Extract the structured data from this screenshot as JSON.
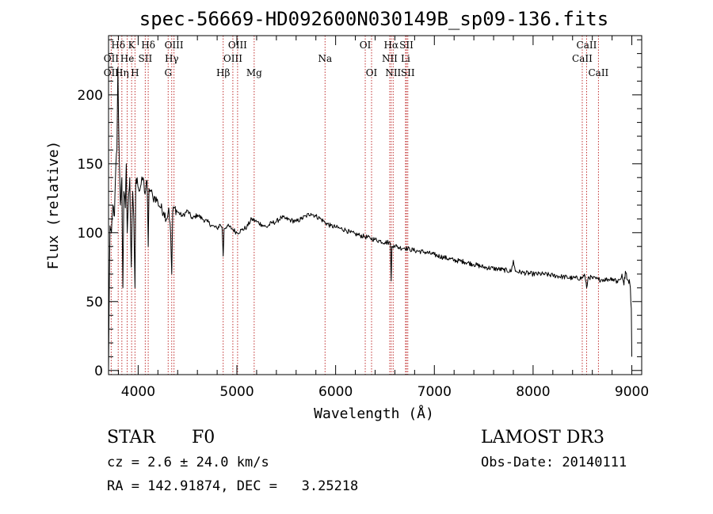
{
  "chart_data": {
    "type": "line",
    "title": "spec-56669-HD092600N030149B_sp09-136.fits",
    "xlabel": "Wavelength (Å)",
    "ylabel": "Flux (relative)",
    "xlim": [
      3700,
      9100
    ],
    "ylim": [
      -3,
      243
    ],
    "xticks": [
      4000,
      5000,
      6000,
      7000,
      8000,
      9000
    ],
    "xtick_labels": [
      "4000",
      "5000",
      "6000",
      "7000",
      "8000",
      "9000"
    ],
    "yticks": [
      0,
      50,
      100,
      150,
      200
    ],
    "ytick_labels": [
      "0",
      "50",
      "100",
      "150",
      "200"
    ],
    "grid": false,
    "series": [
      {
        "name": "spectrum",
        "x": [
          3700,
          3705,
          3715,
          3730,
          3745,
          3760,
          3775,
          3785,
          3795,
          3800,
          3810,
          3820,
          3835,
          3845,
          3855,
          3870,
          3880,
          3889,
          3900,
          3915,
          3930,
          3945,
          3955,
          3968,
          3975,
          3990,
          4010,
          4030,
          4050,
          4070,
          4090,
          4102,
          4110,
          4130,
          4150,
          4170,
          4200,
          4230,
          4260,
          4290,
          4310,
          4330,
          4340,
          4350,
          4370,
          4400,
          4450,
          4500,
          4550,
          4600,
          4650,
          4700,
          4750,
          4800,
          4830,
          4850,
          4861,
          4870,
          4900,
          4950,
          5000,
          5050,
          5100,
          5150,
          5200,
          5250,
          5300,
          5350,
          5400,
          5450,
          5500,
          5550,
          5600,
          5650,
          5700,
          5750,
          5800,
          5850,
          5900,
          5950,
          6000,
          6050,
          6100,
          6150,
          6200,
          6250,
          6300,
          6350,
          6400,
          6450,
          6500,
          6540,
          6555,
          6563,
          6570,
          6590,
          6620,
          6650,
          6700,
          6750,
          6800,
          6900,
          7000,
          7100,
          7200,
          7300,
          7400,
          7500,
          7600,
          7700,
          7780,
          7800,
          7820,
          7900,
          8000,
          8100,
          8200,
          8300,
          8400,
          8498,
          8520,
          8542,
          8560,
          8600,
          8662,
          8700,
          8750,
          8800,
          8850,
          8880,
          8900,
          8920,
          8935,
          8950,
          8965,
          8975,
          8985,
          8995,
          9000
        ],
        "y": [
          0,
          40,
          105,
          100,
          120,
          112,
          150,
          160,
          220,
          188,
          150,
          120,
          140,
          60,
          130,
          118,
          150,
          100,
          120,
          140,
          75,
          130,
          112,
          60,
          135,
          140,
          130,
          135,
          140,
          128,
          138,
          90,
          132,
          130,
          125,
          126,
          122,
          118,
          115,
          110,
          118,
          98,
          70,
          115,
          118,
          115,
          112,
          116,
          110,
          113,
          110,
          108,
          105,
          103,
          106,
          104,
          83,
          103,
          105,
          103,
          100,
          102,
          104,
          110,
          108,
          106,
          104,
          107,
          108,
          111,
          110,
          109,
          108,
          110,
          112,
          114,
          112,
          110,
          107,
          105,
          104,
          103,
          102,
          100,
          99,
          98,
          97,
          96,
          95,
          94,
          93,
          93,
          92,
          65,
          90,
          91,
          90,
          89,
          89,
          88,
          87,
          86,
          84,
          82,
          80,
          79,
          77,
          75,
          74,
          73,
          72,
          80,
          72,
          71,
          70,
          70,
          69,
          68,
          67,
          67,
          70,
          60,
          68,
          67,
          66,
          66,
          66,
          67,
          65,
          66,
          70,
          62,
          72,
          66,
          65,
          66,
          60,
          45,
          10
        ]
      }
    ],
    "lines_top": [
      {
        "label": "Hδ",
        "x": 3798
      },
      {
        "label": "K",
        "x": 3934
      },
      {
        "label": "Hδ",
        "x": 4102
      },
      {
        "label": "OIII",
        "x": 4363
      },
      {
        "label": "OIII",
        "x": 5007
      },
      {
        "label": "OI",
        "x": 6300
      },
      {
        "label": "Hα",
        "x": 6563
      },
      {
        "label": "SII",
        "x": 6717
      },
      {
        "label": "CaII",
        "x": 8542
      }
    ],
    "lines_mid": [
      {
        "label": "OII",
        "x": 3727
      },
      {
        "label": "He",
        "x": 3889
      },
      {
        "label": "SII",
        "x": 4072
      },
      {
        "label": "Hγ",
        "x": 4340
      },
      {
        "label": "OIII",
        "x": 4959
      },
      {
        "label": "Na",
        "x": 5893
      },
      {
        "label": "NII",
        "x": 6548
      },
      {
        "label": "Li",
        "x": 6708
      },
      {
        "label": "CaII",
        "x": 8498
      }
    ],
    "lines_bot": [
      {
        "label": "OII",
        "x": 3727
      },
      {
        "label": "Hη",
        "x": 3835
      },
      {
        "label": "H",
        "x": 3968
      },
      {
        "label": "G",
        "x": 4304
      },
      {
        "label": "Hβ",
        "x": 4861
      },
      {
        "label": "Mg",
        "x": 5175
      },
      {
        "label": "OI",
        "x": 6364
      },
      {
        "label": "NII",
        "x": 6583
      },
      {
        "label": "SII",
        "x": 6731
      },
      {
        "label": "CaII",
        "x": 8662
      }
    ],
    "marker_lines": [
      3727,
      3798,
      3835,
      3889,
      3934,
      3968,
      4072,
      4102,
      4304,
      4340,
      4363,
      4861,
      4959,
      5007,
      5175,
      5893,
      6300,
      6364,
      6548,
      6563,
      6583,
      6708,
      6717,
      6731,
      8498,
      8542,
      8662
    ]
  },
  "info": {
    "class": "STAR",
    "subclass": "F0",
    "survey": "LAMOST DR3",
    "cz": "cz = 2.6 ± 24.0 km/s",
    "obs_date": "Obs-Date: 20140111",
    "coords": "RA = 142.91874, DEC =   3.25218"
  }
}
